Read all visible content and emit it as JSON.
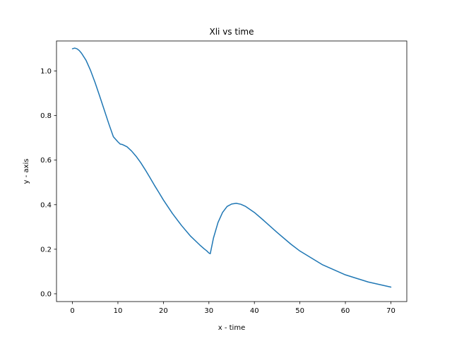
{
  "chart_data": {
    "type": "line",
    "title": "Xli vs time",
    "xlabel": "x - time",
    "ylabel": "y - axis",
    "xlim": [
      -3.5,
      73.5
    ],
    "ylim": [
      -0.035,
      1.135
    ],
    "xticks": [
      0,
      10,
      20,
      30,
      40,
      50,
      60,
      70
    ],
    "yticks": [
      0.0,
      0.2,
      0.4,
      0.6,
      0.8,
      1.0
    ],
    "xtick_labels": [
      "0",
      "10",
      "20",
      "30",
      "40",
      "50",
      "60",
      "70"
    ],
    "ytick_labels": [
      "0.0",
      "0.2",
      "0.4",
      "0.6",
      "0.8",
      "1.0"
    ],
    "grid": false,
    "colors": {
      "line": "#1f77b4",
      "axes": "#000000",
      "background": "#ffffff"
    },
    "series": [
      {
        "x": [
          0,
          0.5,
          1,
          1.5,
          2,
          3,
          4,
          5,
          6,
          7,
          8,
          9,
          10,
          10.5,
          11,
          12,
          13,
          14,
          15,
          16,
          17,
          18,
          19,
          20,
          22,
          24,
          26,
          28,
          29,
          29.5,
          30,
          30.3,
          31,
          32,
          33,
          34,
          35,
          36,
          37,
          38,
          40,
          42,
          45,
          48,
          50,
          55,
          60,
          65,
          70
        ],
        "y": [
          1.1,
          1.103,
          1.1,
          1.092,
          1.08,
          1.048,
          1.002,
          0.947,
          0.887,
          0.825,
          0.763,
          0.705,
          0.682,
          0.672,
          0.67,
          0.66,
          0.641,
          0.617,
          0.589,
          0.557,
          0.523,
          0.488,
          0.455,
          0.421,
          0.36,
          0.306,
          0.258,
          0.219,
          0.201,
          0.193,
          0.183,
          0.18,
          0.25,
          0.32,
          0.365,
          0.392,
          0.403,
          0.406,
          0.402,
          0.393,
          0.365,
          0.33,
          0.275,
          0.223,
          0.192,
          0.13,
          0.085,
          0.053,
          0.03
        ]
      }
    ]
  }
}
